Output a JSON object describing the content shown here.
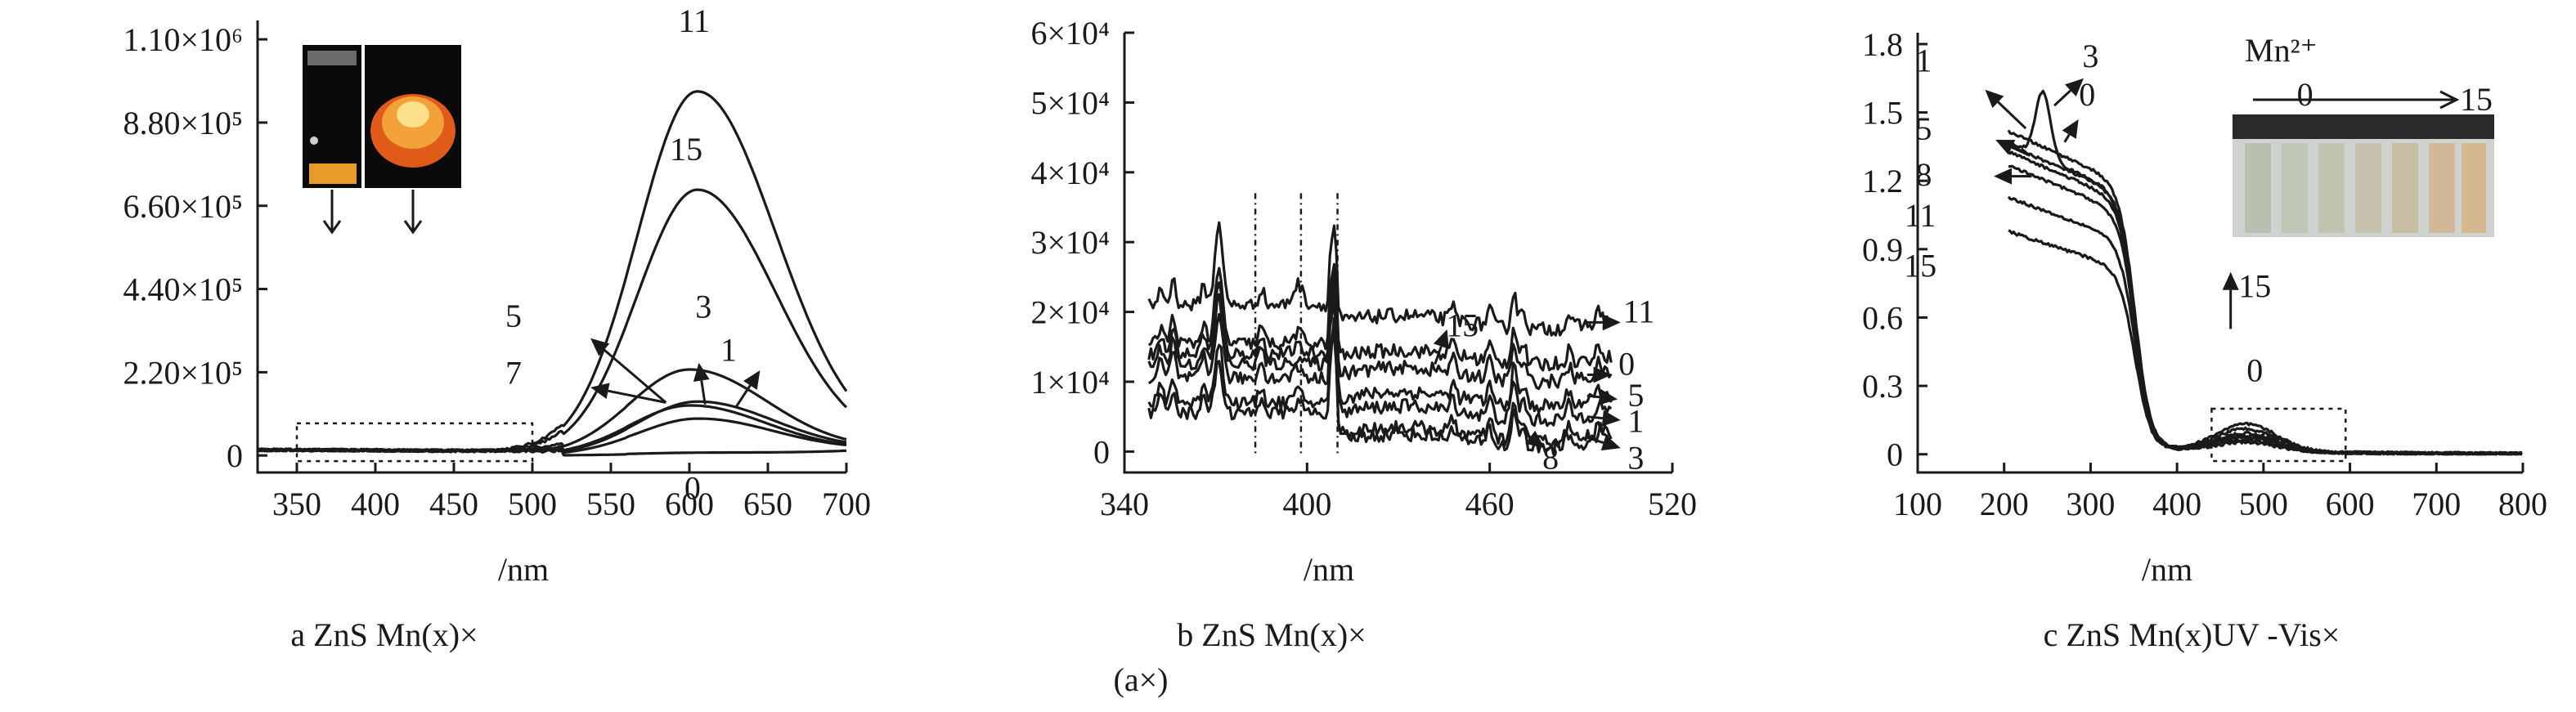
{
  "chart_data": [
    {
      "type": "line",
      "caption": "a ZnS     Mn(x)×",
      "xlabel": "/nm",
      "xlim": [
        325,
        700
      ],
      "ylim": [
        -45000,
        1150000
      ],
      "xticks": [
        350,
        400,
        450,
        500,
        550,
        600,
        650,
        700
      ],
      "yticks": [
        {
          "v": 0,
          "label": "0"
        },
        {
          "v": 220000,
          "label": "2.20×10⁵"
        },
        {
          "v": 440000,
          "label": "4.40×10⁵"
        },
        {
          "v": 660000,
          "label": "6.60×10⁵"
        },
        {
          "v": 880000,
          "label": "8.80×10⁵"
        },
        {
          "v": 1100000,
          "label": "1.10×10⁶"
        }
      ],
      "series": [
        {
          "name": "11",
          "peak": 605,
          "amp": 960000
        },
        {
          "name": "15",
          "peak": 605,
          "amp": 700000
        },
        {
          "name": "3",
          "peak": 600,
          "amp": 225000
        },
        {
          "name": "1",
          "peak": 605,
          "amp": 140000
        },
        {
          "name": "5",
          "peak": 600,
          "amp": 130000
        },
        {
          "name": "7",
          "peak": 605,
          "amp": 95000
        },
        {
          "name": "0",
          "peak": 600,
          "amp": 5000
        }
      ],
      "labels": [
        {
          "t": "11",
          "x": 603,
          "y": 1120000
        },
        {
          "t": "15",
          "x": 598,
          "y": 780000
        },
        {
          "t": "5",
          "x": 488,
          "y": 340000
        },
        {
          "t": "7",
          "x": 488,
          "y": 190000
        },
        {
          "t": "3",
          "x": 609,
          "y": 365000
        },
        {
          "t": "1",
          "x": 625,
          "y": 250000
        },
        {
          "t": "0",
          "x": 602,
          "y": -115000
        }
      ],
      "arrows": [
        {
          "from": [
            585,
            140000
          ],
          "to": [
            537,
            310000
          ]
        },
        {
          "from": [
            585,
            140000
          ],
          "to": [
            537,
            180000
          ]
        },
        {
          "from": [
            610,
            135000
          ],
          "to": [
            606,
            245000
          ]
        },
        {
          "from": [
            630,
            130000
          ],
          "to": [
            645,
            225000
          ]
        }
      ],
      "zoom_box": {
        "x": [
          350,
          500
        ],
        "y": [
          -15000,
          85000
        ]
      }
    },
    {
      "type": "line",
      "caption": "b ZnS     Mn(x)×",
      "caption2": "(a×)",
      "xlabel": "/nm",
      "xlim": [
        340,
        520
      ],
      "ylim": [
        -3000,
        60000
      ],
      "xticks": [
        340,
        400,
        460,
        520
      ],
      "yticks": [
        {
          "v": 0,
          "label": "0"
        },
        {
          "v": 10000,
          "label": "1×10⁴"
        },
        {
          "v": 20000,
          "label": "2×10⁴"
        },
        {
          "v": 30000,
          "label": "3×10⁴"
        },
        {
          "v": 40000,
          "label": "4×10⁴"
        },
        {
          "v": 50000,
          "label": "5×10⁴"
        },
        {
          "v": 60000,
          "label": "6×10⁴"
        }
      ],
      "series": [
        {
          "name": "11",
          "base": 21000,
          "tail": 18500,
          "peak371": 33000,
          "peak397": 24000
        },
        {
          "name": "15",
          "base": 15500,
          "tail": 13500,
          "peak371": 26000,
          "peak397": 17000
        },
        {
          "name": "0",
          "base": 14000,
          "tail": 11000,
          "peak371": 24000,
          "peak397": 15000
        },
        {
          "name": "5",
          "base": 12500,
          "tail": 7500,
          "peak371": 22000,
          "peak397": 13500
        },
        {
          "name": "1",
          "base": 10500,
          "tail": 5500,
          "peak371": 20000,
          "peak397": 12000
        },
        {
          "name": "8",
          "base": 7000,
          "tail": 2500,
          "peak371": 16000,
          "peak397": 8500
        },
        {
          "name": "3",
          "base": 5500,
          "tail": 1500,
          "peak371": 13000,
          "peak397": 7000
        }
      ],
      "labels": [
        {
          "t": "11",
          "x": 509,
          "y": 18500
        },
        {
          "t": "0",
          "x": 505,
          "y": 11000
        },
        {
          "t": "5",
          "x": 508,
          "y": 6500
        },
        {
          "t": "1",
          "x": 508,
          "y": 2800
        },
        {
          "t": "3",
          "x": 508,
          "y": -2500
        },
        {
          "t": "8",
          "x": 480,
          "y": -2500
        },
        {
          "t": "15",
          "x": 451,
          "y": 16500
        }
      ],
      "arrows": [
        {
          "from": [
            492,
            18500
          ],
          "to": [
            503,
            18500
          ]
        },
        {
          "from": [
            492,
            11000
          ],
          "to": [
            500,
            11000
          ]
        },
        {
          "from": [
            492,
            8000
          ],
          "to": [
            502,
            7500
          ]
        },
        {
          "from": [
            492,
            5000
          ],
          "to": [
            503,
            4500
          ]
        },
        {
          "from": [
            492,
            2000
          ],
          "to": [
            503,
            500
          ]
        },
        {
          "from": [
            472,
            2500
          ],
          "to": [
            478,
            500
          ]
        },
        {
          "from": [
            442,
            12500
          ],
          "to": [
            446,
            17500
          ]
        }
      ],
      "markers": [
        383,
        398,
        410
      ]
    },
    {
      "type": "line",
      "caption": "c ZnS     Mn(x)UV     -Vis×",
      "xlabel": "/nm",
      "xlim": [
        100,
        800
      ],
      "ylim": [
        -0.08,
        1.85
      ],
      "xticks": [
        100,
        200,
        300,
        400,
        500,
        600,
        700,
        800
      ],
      "yticks": [
        {
          "v": 0,
          "label": "0"
        },
        {
          "v": 0.3,
          "label": "0.3"
        },
        {
          "v": 0.6,
          "label": "0.6"
        },
        {
          "v": 0.9,
          "label": "0.9"
        },
        {
          "v": 1.2,
          "label": "1.2"
        },
        {
          "v": 1.5,
          "label": "1.5"
        },
        {
          "v": 1.8,
          "label": "1.8"
        }
      ],
      "series": [
        {
          "name": "3",
          "start": 1.32,
          "hump": 1.61,
          "bump": 0.12
        },
        {
          "name": "0",
          "start": 1.37,
          "hump": 0,
          "bump": 0.1
        },
        {
          "name": "1",
          "start": 1.31,
          "hump": 0,
          "bump": 0.08
        },
        {
          "name": "5",
          "start": 1.28,
          "hump": 0,
          "bump": 0.07
        },
        {
          "name": "8",
          "start": 1.22,
          "hump": 0,
          "bump": 0.06
        },
        {
          "name": "11",
          "start": 1.08,
          "hump": 0,
          "bump": 0.05
        },
        {
          "name": "15",
          "start": 0.93,
          "hump": 0,
          "bump": 0.04
        }
      ],
      "labels": [
        {
          "t": "1",
          "x": 107,
          "y": 1.68
        },
        {
          "t": "5",
          "x": 107,
          "y": 1.38
        },
        {
          "t": "8",
          "x": 107,
          "y": 1.18
        },
        {
          "t": "11",
          "x": 103,
          "y": 1.0
        },
        {
          "t": "15",
          "x": 103,
          "y": 0.78
        },
        {
          "t": "3",
          "x": 300,
          "y": 1.7
        },
        {
          "t": "0",
          "x": 296,
          "y": 1.53
        },
        {
          "t": "0",
          "x": 548,
          "y": 1.53
        },
        {
          "t": "15",
          "x": 490,
          "y": 0.69
        },
        {
          "t": "0",
          "x": 490,
          "y": 0.32
        }
      ],
      "arrows": [
        {
          "from": [
            225,
            1.43
          ],
          "to": [
            178,
            1.6
          ]
        },
        {
          "from": [
            230,
            1.31
          ],
          "to": [
            190,
            1.38
          ]
        },
        {
          "from": [
            232,
            1.22
          ],
          "to": [
            188,
            1.22
          ]
        },
        {
          "from": [
            258,
            1.53
          ],
          "to": [
            292,
            1.65
          ]
        },
        {
          "from": [
            270,
            1.37
          ],
          "to": [
            286,
            1.47
          ]
        },
        {
          "from": [
            462,
            0.55
          ],
          "to": [
            462,
            0.8
          ]
        }
      ],
      "zoom_box": {
        "x": [
          440,
          595
        ],
        "y": [
          -0.03,
          0.2
        ]
      },
      "inset_label": "Mn²⁺",
      "inset_label_end": "15"
    }
  ]
}
